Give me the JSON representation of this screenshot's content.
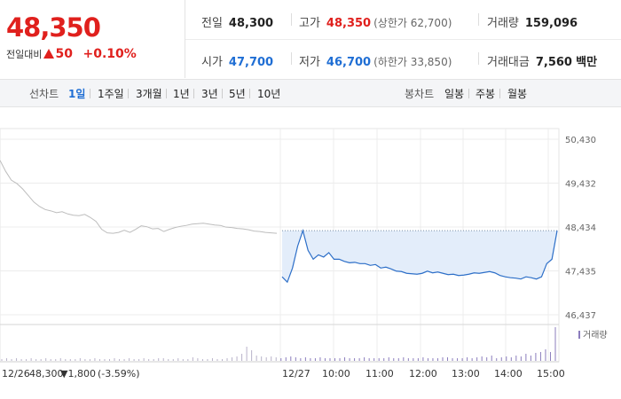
{
  "price": {
    "current": "48,350",
    "change_label": "전일대비",
    "change_value": "50",
    "change_pct": "+0.10%"
  },
  "info": {
    "prev_close_label": "전일",
    "prev_close": "48,300",
    "high_label": "고가",
    "high": "48,350",
    "upper_limit": "(상한가 62,700)",
    "volume_label": "거래량",
    "volume": "159,096",
    "open_label": "시가",
    "open": "47,700",
    "low_label": "저가",
    "low": "46,700",
    "lower_limit": "(하한가 33,850)",
    "amount_label": "거래대금",
    "amount": "7,560",
    "amount_unit": "백만"
  },
  "tabs": {
    "line_label": "선차트",
    "line_periods": [
      "1일",
      "1주일",
      "3개월",
      "1년",
      "3년",
      "5년",
      "10년"
    ],
    "active_period": "1일",
    "candle_label": "봉차트",
    "candle_periods": [
      "일봉",
      "주봉",
      "월봉"
    ]
  },
  "colors": {
    "up": "#e0201d",
    "down": "#1f6ed4",
    "line": "#2d6fc8",
    "fill": "#e3edfa",
    "prev": "#bdbdbd"
  },
  "chart_data": {
    "type": "line",
    "y_ticks": [
      "50,430",
      "49,432",
      "48,434",
      "47,435",
      "46,437"
    ],
    "ylim": [
      46437,
      50430
    ],
    "x_labels": [
      "12/26",
      "12/27",
      "10:00",
      "11:00",
      "12:00",
      "13:00",
      "14:00",
      "15:00"
    ],
    "prev_day_footer": {
      "date": "12/26",
      "close": "48,300",
      "change": "1,800",
      "change_pct": "(-3.59%)"
    },
    "volume_legend": "거래량",
    "series": [
      {
        "values": [
          49950,
          49700,
          49500,
          49420,
          49300,
          49150,
          49000,
          48900,
          48830,
          48800,
          48760,
          48780,
          48730,
          48700,
          48690,
          48720,
          48650,
          48560,
          48380,
          48300,
          48290,
          48310,
          48360,
          48310,
          48380,
          48460,
          48440,
          48390,
          48400,
          48330,
          48380,
          48420,
          48450,
          48470,
          48500,
          48510,
          48520,
          48500,
          48480,
          48470,
          48430,
          48420,
          48400,
          48390,
          48370,
          48340,
          48330,
          48310,
          48300,
          48290
        ]
      },
      {
        "values": [
          47300,
          47180,
          47500,
          48000,
          48350,
          47900,
          47700,
          47800,
          47750,
          47850,
          47700,
          47700,
          47650,
          47620,
          47630,
          47600,
          47600,
          47560,
          47580,
          47500,
          47520,
          47480,
          47430,
          47420,
          47380,
          47370,
          47360,
          47380,
          47430,
          47390,
          47410,
          47380,
          47350,
          47360,
          47330,
          47340,
          47360,
          47390,
          47380,
          47400,
          47420,
          47390,
          47330,
          47300,
          47280,
          47270,
          47250,
          47300,
          47280,
          47250,
          47300,
          47600,
          47700,
          48350
        ]
      }
    ],
    "volume": [
      2,
      3,
      2,
      3,
      2,
      2,
      3,
      2,
      2,
      3,
      2,
      2,
      3,
      2,
      2,
      2,
      3,
      2,
      2,
      3,
      2,
      2,
      2,
      3,
      2,
      2,
      3,
      2,
      2,
      3,
      2,
      2,
      3,
      3,
      2,
      2,
      3,
      2,
      2,
      4,
      3,
      2,
      2,
      3,
      2,
      2,
      3,
      4,
      5,
      8,
      16,
      12,
      6,
      5,
      4,
      5,
      4,
      3,
      4,
      5,
      4,
      3,
      4,
      3,
      3,
      4,
      3,
      3,
      3,
      3,
      4,
      3,
      3,
      3,
      4,
      3,
      3,
      3,
      3,
      4,
      3,
      3,
      4,
      3,
      3,
      3,
      4,
      3,
      3,
      3,
      4,
      4,
      3,
      3,
      3,
      4,
      3,
      4,
      5,
      4,
      6,
      3,
      4,
      5,
      4,
      6,
      5,
      8,
      6,
      9,
      10,
      13,
      10,
      38
    ]
  }
}
